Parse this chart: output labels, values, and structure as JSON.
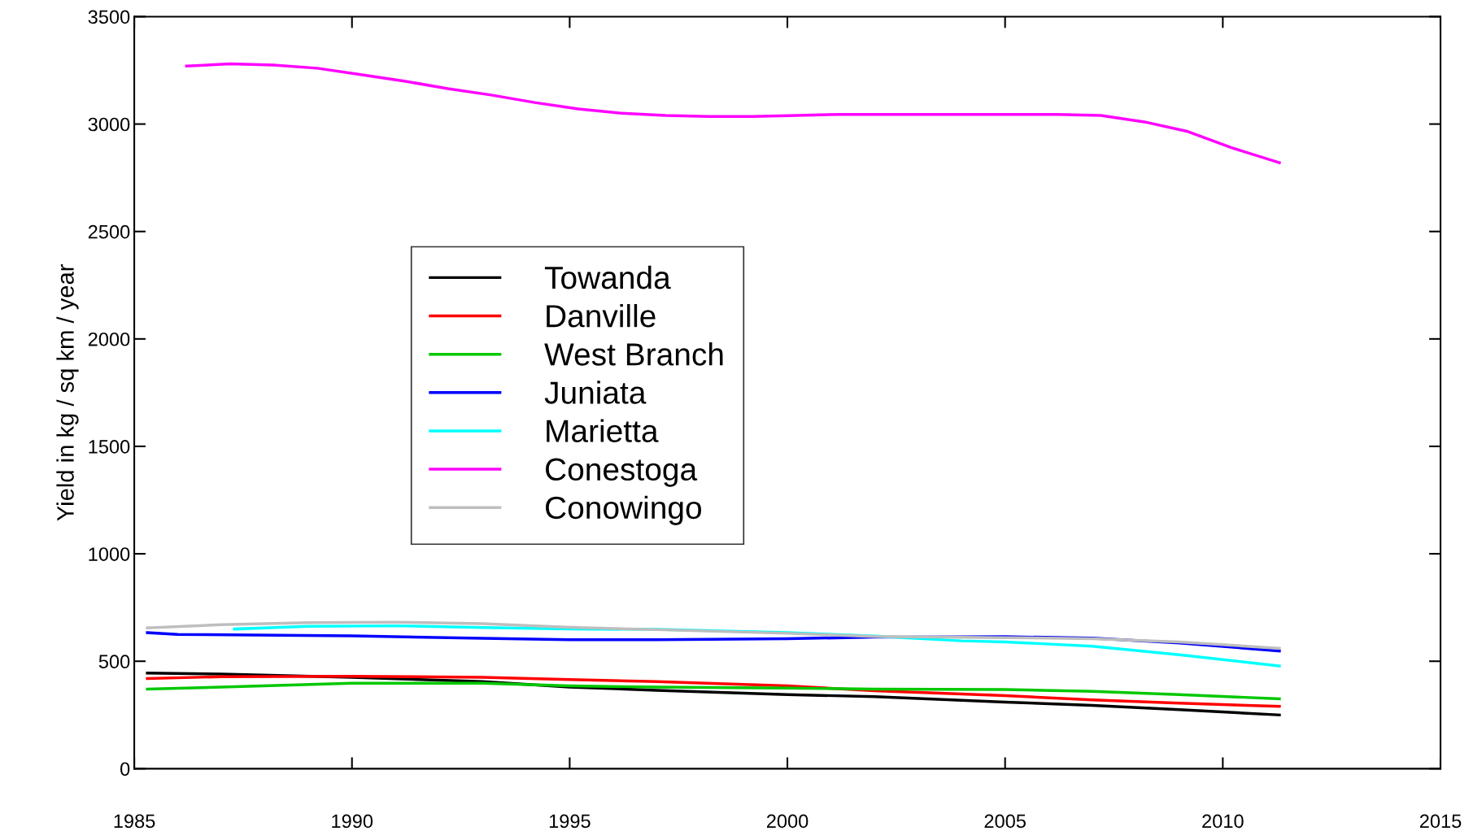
{
  "chart_data": {
    "type": "line",
    "ylabel": "Yield in kg / sq km / year",
    "xlim": [
      1985,
      2015
    ],
    "xticks": [
      1985,
      1990,
      1995,
      2000,
      2005,
      2010,
      2015
    ],
    "ylim": [
      0,
      3500
    ],
    "yticks": [
      0,
      500,
      1000,
      1500,
      2000,
      2500,
      3000,
      3500
    ],
    "grid": false,
    "legend": "left",
    "marker": "none",
    "line_style": "solid",
    "series": [
      {
        "name": "Towanda",
        "color": "#000000",
        "x": [
          1985.3,
          1987,
          1990,
          1993,
          1995,
          1997,
          2000,
          2002,
          2005,
          2007,
          2009,
          2011.3
        ],
        "values": [
          445,
          440,
          425,
          405,
          380,
          365,
          345,
          335,
          310,
          295,
          275,
          250
        ]
      },
      {
        "name": "Danville",
        "color": "#ff0000",
        "x": [
          1985.3,
          1987,
          1990,
          1993,
          1995,
          1997,
          2000,
          2002,
          2005,
          2007,
          2009,
          2011.3
        ],
        "values": [
          420,
          428,
          430,
          425,
          415,
          405,
          385,
          363,
          340,
          320,
          305,
          290
        ]
      },
      {
        "name": "West Branch",
        "color": "#00c800",
        "x": [
          1985.3,
          1987,
          1990,
          1993,
          1995,
          1997,
          2000,
          2002,
          2005,
          2007,
          2009,
          2011.3
        ],
        "values": [
          370,
          380,
          398,
          398,
          385,
          380,
          375,
          370,
          368,
          360,
          345,
          325
        ]
      },
      {
        "name": "Juniata",
        "color": "#0000ff",
        "x": [
          1985.3,
          1986,
          1990,
          1993,
          1995,
          1997,
          2000,
          2002,
          2005,
          2007,
          2009,
          2011.3
        ],
        "values": [
          633,
          625,
          618,
          607,
          600,
          600,
          605,
          612,
          614,
          608,
          585,
          548
        ]
      },
      {
        "name": "Marietta",
        "color": "#00ffff",
        "x": [
          1987.3,
          1989,
          1991,
          1993,
          1995,
          1997,
          2000,
          2002,
          2004,
          2005,
          2007,
          2009,
          2011.3
        ],
        "values": [
          650,
          663,
          665,
          657,
          650,
          648,
          633,
          617,
          595,
          590,
          570,
          530,
          478
        ]
      },
      {
        "name": "Conestoga",
        "color": "#ff00ff",
        "x": [
          1986.2,
          1987.2,
          1988.2,
          1989.2,
          1990.2,
          1991.2,
          1992.2,
          1993.2,
          1994.2,
          1995.2,
          1996.2,
          1997.2,
          1998.2,
          1999.2,
          2000.2,
          2001.2,
          2002.2,
          2003.2,
          2004.2,
          2005.2,
          2006.2,
          2007.2,
          2008.2,
          2009.2,
          2010.2,
          2011.3
        ],
        "values": [
          3270,
          3280,
          3275,
          3260,
          3230,
          3200,
          3165,
          3135,
          3100,
          3070,
          3050,
          3040,
          3035,
          3035,
          3040,
          3045,
          3045,
          3045,
          3045,
          3045,
          3045,
          3040,
          3010,
          2965,
          2890,
          2820
        ]
      },
      {
        "name": "Conowingo",
        "color": "#bebebe",
        "x": [
          1985.3,
          1987,
          1989,
          1991,
          1993,
          1995,
          1997,
          2000,
          2002,
          2005,
          2007,
          2009,
          2011.3
        ],
        "values": [
          655,
          670,
          680,
          682,
          675,
          658,
          647,
          630,
          615,
          610,
          605,
          590,
          560
        ]
      }
    ]
  }
}
